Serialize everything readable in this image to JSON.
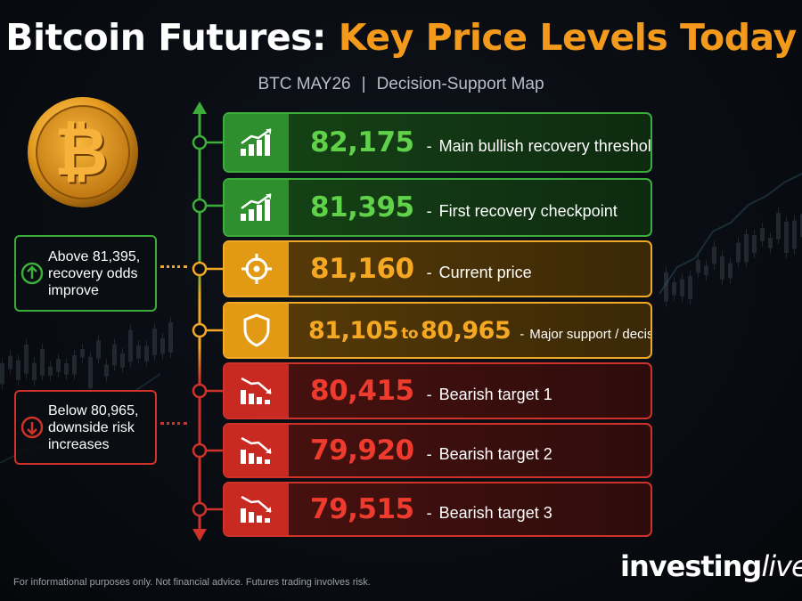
{
  "header": {
    "title_white": "Bitcoin Futures:",
    "title_orange": "Key Price Levels Today",
    "subtitle_left": "BTC MAY26",
    "subtitle_sep": "|",
    "subtitle_right": "Decision-Support Map"
  },
  "colors": {
    "bullish": "#3cad3a",
    "current": "#f0a826",
    "bearish": "#cf3228",
    "title_accent": "#f39a1c"
  },
  "levels": [
    {
      "price": "82,175",
      "dash": "-",
      "label": "Main bullish recovery threshold",
      "tone": "green",
      "icon": "trend-up-icon"
    },
    {
      "price": "81,395",
      "dash": "-",
      "label": "First recovery checkpoint",
      "tone": "green",
      "icon": "trend-up-icon"
    },
    {
      "price": "81,160",
      "dash": "-",
      "label": "Current price",
      "tone": "orange",
      "icon": "crosshair-icon"
    },
    {
      "price_low": "81,105",
      "price_to": "to",
      "price_high": "80,965",
      "dash": "-",
      "label": "Major support / decision zone",
      "tone": "orange",
      "icon": "shield-icon"
    },
    {
      "price": "80,415",
      "dash": "-",
      "label": "Bearish target 1",
      "tone": "red",
      "icon": "trend-down-icon"
    },
    {
      "price": "79,920",
      "dash": "-",
      "label": "Bearish target 2",
      "tone": "red",
      "icon": "trend-down-icon"
    },
    {
      "price": "79,515",
      "dash": "-",
      "label": "Bearish target 3",
      "tone": "red",
      "icon": "trend-down-icon"
    }
  ],
  "notes": {
    "up": {
      "line1": "Above 81,395,",
      "line2": "recovery odds",
      "line3": "improve",
      "icon": "arrow-up-circle-icon"
    },
    "down": {
      "line1": "Below 80,965,",
      "line2": "downside risk",
      "line3": "increases",
      "icon": "arrow-down-circle-icon"
    }
  },
  "footer": {
    "disclaimer": "For informational purposes only. Not financial advice. Futures trading involves risk.",
    "brand_bold": "investing",
    "brand_italic": "live"
  },
  "coin_symbol": "₿"
}
